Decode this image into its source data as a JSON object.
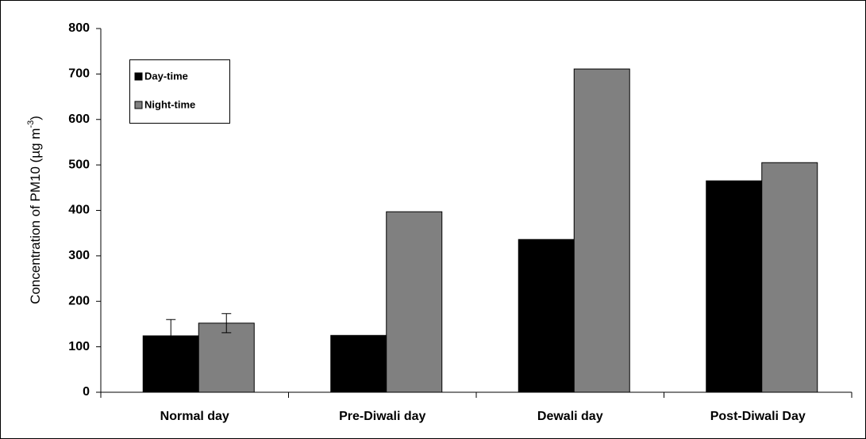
{
  "chart_data": {
    "type": "bar",
    "y_label": {
      "text": "Concentration of PM10 (µg m",
      "superscript": "-3",
      "suffix": ")"
    },
    "categories": [
      "Normal day",
      "Pre-Diwali day",
      "Dewali day",
      "Post-Diwali Day"
    ],
    "series": [
      {
        "name": "Day-time",
        "color": "#000000",
        "values": [
          124,
          125,
          336,
          465
        ],
        "errors": [
          36,
          null,
          null,
          null
        ]
      },
      {
        "name": "Night-time",
        "color": "#808080",
        "values": [
          152,
          397,
          711,
          505
        ],
        "errors": [
          21,
          null,
          null,
          null
        ]
      }
    ],
    "ylim": [
      0,
      800
    ],
    "yticks": [
      0,
      100,
      200,
      300,
      400,
      500,
      600,
      700,
      800
    ],
    "grid": false,
    "legend": "top-left"
  }
}
